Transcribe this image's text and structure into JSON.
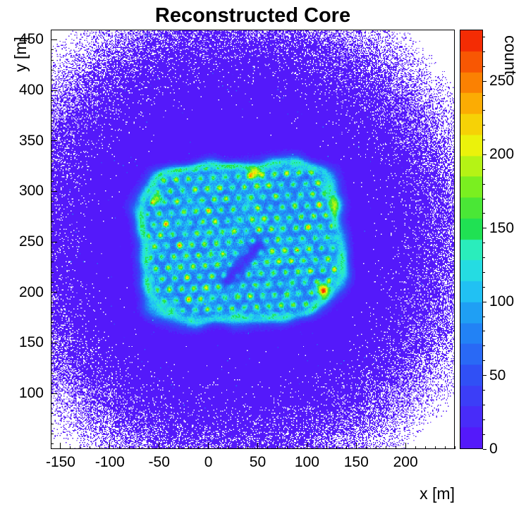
{
  "title": "Reconstructed Core",
  "axes": {
    "x": {
      "label": "x [m]",
      "ticks": [
        -150,
        -100,
        -50,
        0,
        50,
        100,
        150,
        200
      ],
      "minor_step": 10
    },
    "y": {
      "label": "y [m]",
      "ticks": [
        100,
        150,
        200,
        250,
        300,
        350,
        400,
        450
      ],
      "minor_step": 10
    },
    "z": {
      "label": "count",
      "ticks": [
        0,
        50,
        100,
        150,
        200,
        250
      ],
      "minor_step": 10
    }
  },
  "chart_data": {
    "type": "heatmap",
    "title": "Reconstructed Core",
    "xlabel": "x [m]",
    "ylabel": "y [m]",
    "zlabel": "count",
    "xlim": [
      -160,
      250
    ],
    "ylim": [
      45,
      460
    ],
    "zlim": [
      0,
      285
    ],
    "grid": false,
    "legend": "colorbar-right",
    "bins": [
      410,
      415
    ],
    "seed": 20240613,
    "palette": {
      "levels": 20,
      "zero_color": "#ffffff",
      "stops": [
        {
          "at": 0.0,
          "color": "#5a10fb"
        },
        {
          "at": 0.18,
          "color": "#2f52f5"
        },
        {
          "at": 0.3,
          "color": "#1e8ef5"
        },
        {
          "at": 0.4,
          "color": "#22d2f2"
        },
        {
          "at": 0.47,
          "color": "#2beec6"
        },
        {
          "at": 0.53,
          "color": "#1fe049"
        },
        {
          "at": 0.63,
          "color": "#7ff01e"
        },
        {
          "at": 0.72,
          "color": "#eaf50c"
        },
        {
          "at": 0.8,
          "color": "#fcc203"
        },
        {
          "at": 0.88,
          "color": "#fb7d02"
        },
        {
          "at": 1.0,
          "color": "#f21705"
        }
      ]
    },
    "background": {
      "center": [
        30,
        252
      ],
      "sigma": 100,
      "amplitude": 13,
      "speckle_prob": 0.0015
    },
    "array_region": {
      "center": [
        33,
        250
      ],
      "half_width": 104,
      "half_height": 79,
      "rotation_deg": 3,
      "interior_level": 72,
      "rim_level": 60,
      "edge_noise": 0.1
    },
    "detector_grid": {
      "spacing": 12.5,
      "dot_radius": 3.0,
      "dot_level": 85,
      "bright_bonus": 40,
      "bright_threshold": 0.96
    },
    "gap": {
      "from": [
        20,
        212
      ],
      "to": [
        50,
        246
      ],
      "width": 7,
      "depth": 0.85
    },
    "hotspots": [
      {
        "x": 116,
        "y": 203,
        "r": 3,
        "add": 150
      },
      {
        "x": 47,
        "y": 318,
        "r": 3,
        "add": 110
      },
      {
        "x": 130,
        "y": 286,
        "r": 4,
        "add": 80
      },
      {
        "x": -52,
        "y": 292,
        "r": 3,
        "add": 90
      }
    ]
  }
}
